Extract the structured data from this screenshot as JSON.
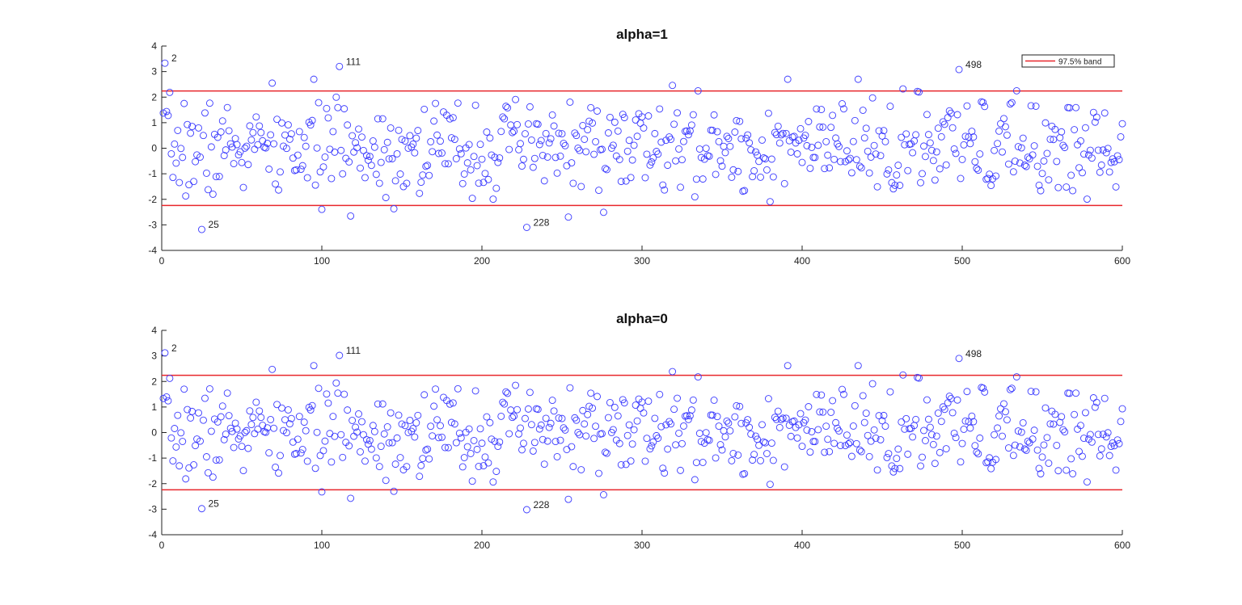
{
  "chart_data": [
    {
      "type": "scatter",
      "title": "alpha=1",
      "xlabel": "",
      "ylabel": "",
      "xlim": [
        0,
        600
      ],
      "ylim": [
        -4,
        4
      ],
      "xticks": [
        0,
        100,
        200,
        300,
        400,
        500,
        600
      ],
      "yticks": [
        -4,
        -3,
        -2,
        -1,
        0,
        1,
        2,
        3,
        4
      ],
      "grid": false,
      "band": {
        "upper": 2.24,
        "lower": -2.24,
        "color": "#e8262b",
        "label": "97.5% band"
      },
      "legend": {
        "position": "top-right",
        "entries": [
          "97.5% band"
        ]
      },
      "marker_color": "#3a3aff",
      "n_points": 600,
      "labeled_outliers": [
        {
          "label": "2",
          "x": 2,
          "y": 3.33
        },
        {
          "label": "111",
          "x": 111,
          "y": 3.2
        },
        {
          "label": "498",
          "x": 498,
          "y": 3.08
        },
        {
          "label": "25",
          "x": 25,
          "y": -3.18
        },
        {
          "label": "228",
          "x": 228,
          "y": -3.1
        }
      ],
      "seed": 7
    },
    {
      "type": "scatter",
      "title": "alpha=0",
      "xlabel": "",
      "ylabel": "",
      "xlim": [
        0,
        600
      ],
      "ylim": [
        -4,
        4
      ],
      "xticks": [
        0,
        100,
        200,
        300,
        400,
        500,
        600
      ],
      "yticks": [
        -4,
        -3,
        -2,
        -1,
        0,
        1,
        2,
        3,
        4
      ],
      "grid": false,
      "band": {
        "upper": 2.24,
        "lower": -2.24,
        "color": "#e8262b"
      },
      "marker_color": "#3a3aff",
      "n_points": 600,
      "labeled_outliers": [
        {
          "label": "2",
          "x": 2,
          "y": 3.12
        },
        {
          "label": "111",
          "x": 111,
          "y": 3.02
        },
        {
          "label": "498",
          "x": 498,
          "y": 2.9
        },
        {
          "label": "25",
          "x": 25,
          "y": -2.98
        },
        {
          "label": "228",
          "x": 228,
          "y": -3.02
        }
      ],
      "seed": 7
    }
  ]
}
